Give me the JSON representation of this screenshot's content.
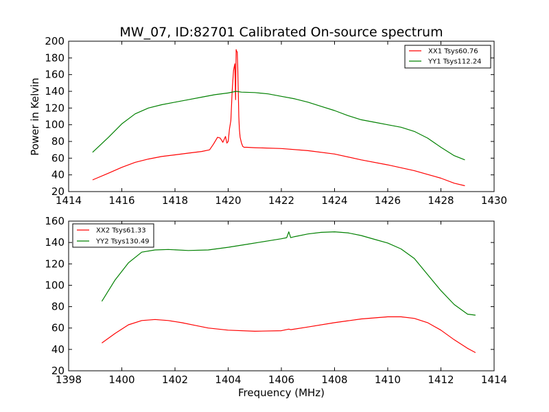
{
  "figure": {
    "title": "MW_07, ID:82701 Calibrated On-source spectrum"
  },
  "chart_data": [
    {
      "type": "line",
      "title": "MW_07, ID:82701 Calibrated On-source spectrum",
      "xlabel": "",
      "ylabel": "Power in Kelvin",
      "xlim": [
        1414,
        1430
      ],
      "ylim": [
        20,
        200
      ],
      "xticks": [
        "1414",
        "1416",
        "1418",
        "1420",
        "1422",
        "1424",
        "1426",
        "1428",
        "1430"
      ],
      "yticks": [
        "20",
        "40",
        "60",
        "80",
        "100",
        "120",
        "140",
        "160",
        "180",
        "200"
      ],
      "grid": false,
      "legend_position": "top-right",
      "series": [
        {
          "name": "XX1 Tsys60.76",
          "color": "#ff0000",
          "x": [
            1414.9,
            1415.5,
            1416,
            1416.5,
            1417,
            1417.5,
            1418,
            1418.5,
            1419,
            1419.3,
            1419.45,
            1419.6,
            1419.7,
            1419.8,
            1419.9,
            1419.95,
            1420.0,
            1420.05,
            1420.1,
            1420.15,
            1420.2,
            1420.25,
            1420.28,
            1420.3,
            1420.32,
            1420.34,
            1420.36,
            1420.38,
            1420.4,
            1420.42,
            1420.45,
            1420.5,
            1420.55,
            1420.6,
            1420.7,
            1421,
            1422,
            1423,
            1424,
            1425,
            1426,
            1427,
            1428,
            1428.5,
            1428.9
          ],
          "y": [
            34,
            42,
            49,
            55,
            59,
            62,
            64,
            66,
            68,
            70,
            77,
            85,
            84,
            79,
            86,
            78,
            80,
            95,
            105,
            140,
            165,
            173,
            130,
            190,
            188,
            187,
            170,
            140,
            110,
            95,
            85,
            78,
            74,
            73,
            73,
            72.5,
            71.5,
            69,
            65,
            58,
            52,
            45,
            36,
            30,
            27
          ]
        },
        {
          "name": "YY1 Tsys112.24",
          "color": "#008000",
          "x": [
            1414.9,
            1415.5,
            1416,
            1416.5,
            1417,
            1417.5,
            1418,
            1418.5,
            1419,
            1419.5,
            1420,
            1420.3,
            1420.5,
            1421,
            1421.5,
            1422,
            1422.5,
            1423,
            1423.5,
            1424,
            1424.5,
            1425,
            1425.5,
            1426,
            1426.5,
            1427,
            1427.5,
            1428,
            1428.5,
            1428.9
          ],
          "y": [
            67,
            85,
            101,
            113,
            120,
            124,
            127,
            130,
            133,
            136,
            138,
            140,
            139,
            138.5,
            137,
            134,
            131,
            127,
            122,
            117,
            111,
            106,
            103,
            100,
            97,
            92,
            84,
            73,
            63,
            58
          ]
        }
      ]
    },
    {
      "type": "line",
      "title": "",
      "xlabel": "Frequency (MHz)",
      "ylabel": "",
      "xlim": [
        1398,
        1414
      ],
      "ylim": [
        20,
        160
      ],
      "xticks": [
        "1398",
        "1400",
        "1402",
        "1404",
        "1406",
        "1408",
        "1410",
        "1412",
        "1414"
      ],
      "yticks": [
        "20",
        "40",
        "60",
        "80",
        "100",
        "120",
        "140",
        "160"
      ],
      "grid": false,
      "legend_position": "top-left",
      "series": [
        {
          "name": "XX2 Tsys61.33",
          "color": "#ff0000",
          "x": [
            1399.25,
            1399.75,
            1400.25,
            1400.75,
            1401.25,
            1401.75,
            1402.25,
            1402.75,
            1403.25,
            1404,
            1405,
            1406,
            1406.28,
            1406.35,
            1407,
            1408,
            1409,
            1410,
            1410.5,
            1411,
            1411.5,
            1412,
            1412.5,
            1413,
            1413.3
          ],
          "y": [
            46,
            55,
            63,
            67,
            68,
            67,
            65,
            62.5,
            60,
            58,
            57,
            57.5,
            59,
            58.5,
            61,
            65,
            68.5,
            70.5,
            70.5,
            69,
            65,
            58,
            49,
            41,
            37
          ]
        },
        {
          "name": "YY2 Tsys130.49",
          "color": "#008000",
          "x": [
            1399.25,
            1399.75,
            1400.25,
            1400.75,
            1401.25,
            1401.75,
            1402.5,
            1403.25,
            1404,
            1404.75,
            1405.5,
            1406,
            1406.2,
            1406.28,
            1406.35,
            1406.5,
            1407,
            1407.5,
            1408,
            1408.5,
            1409,
            1409.5,
            1410,
            1410.5,
            1411,
            1411.5,
            1412,
            1412.5,
            1413,
            1413.3
          ],
          "y": [
            85,
            105,
            121,
            131,
            133,
            133.5,
            132.5,
            133,
            135.5,
            138.5,
            141.5,
            143.5,
            144.5,
            150,
            144.5,
            145.5,
            148,
            149.5,
            150,
            149,
            146.5,
            143,
            139.5,
            134,
            125,
            110,
            95,
            82,
            73,
            72
          ]
        }
      ]
    }
  ]
}
